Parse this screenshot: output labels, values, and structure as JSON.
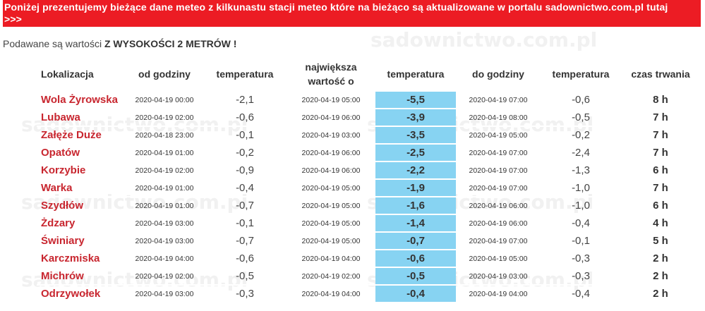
{
  "banner": {
    "line1": "Poniżej prezentujemy bieżące dane meteo z kilkunastu stacji meteo które na bieżąco są aktualizowane w portalu sadownictwo.com.pl tutaj",
    "line2": ">>>"
  },
  "note": {
    "prefix": "Podawane są wartości ",
    "bold": "Z WYSOKOŚCI 2 METRÓW !"
  },
  "watermark": "sadownictwo.com.pl",
  "colors": {
    "banner_bg": "#ec1c24",
    "location_text": "#c8262f",
    "min_temp_bg": "#87d3f2"
  },
  "table": {
    "headers": {
      "location": "Lokalizacja",
      "from_time": "od godziny",
      "temp1": "temperatura",
      "max_value_line1": "największa",
      "max_value_line2": "wartość o",
      "temp_min": "temperatura",
      "to_time": "do godziny",
      "temp2": "temperatura",
      "duration": "czas trwania"
    },
    "rows": [
      {
        "location": "Wola Żyrowska",
        "from": "2020-04-19 00:00",
        "t1": "-2,1",
        "at": "2020-04-19 05:00",
        "tmin": "-5,5",
        "to": "2020-04-19 07:00",
        "t2": "-0,6",
        "dur": "8 h"
      },
      {
        "location": "Lubawa",
        "from": "2020-04-19 02:00",
        "t1": "-0,6",
        "at": "2020-04-19 06:00",
        "tmin": "-3,9",
        "to": "2020-04-19 08:00",
        "t2": "-0,5",
        "dur": "7 h"
      },
      {
        "location": "Załęże Duże",
        "from": "2020-04-18 23:00",
        "t1": "-0,1",
        "at": "2020-04-19 03:00",
        "tmin": "-3,5",
        "to": "2020-04-19 05:00",
        "t2": "-0,2",
        "dur": "7 h"
      },
      {
        "location": "Opatów",
        "from": "2020-04-19 01:00",
        "t1": "-0,2",
        "at": "2020-04-19 06:00",
        "tmin": "-2,5",
        "to": "2020-04-19 07:00",
        "t2": "-2,4",
        "dur": "7 h"
      },
      {
        "location": "Korzybie",
        "from": "2020-04-19 02:00",
        "t1": "-0,9",
        "at": "2020-04-19 06:00",
        "tmin": "-2,2",
        "to": "2020-04-19 07:00",
        "t2": "-1,3",
        "dur": "6 h"
      },
      {
        "location": "Warka",
        "from": "2020-04-19 01:00",
        "t1": "-0,4",
        "at": "2020-04-19 05:00",
        "tmin": "-1,9",
        "to": "2020-04-19 07:00",
        "t2": "-1,0",
        "dur": "7 h"
      },
      {
        "location": "Szydłów",
        "from": "2020-04-19 01:00",
        "t1": "-0,7",
        "at": "2020-04-19 05:00",
        "tmin": "-1,6",
        "to": "2020-04-19 06:00",
        "t2": "-1,0",
        "dur": "6 h"
      },
      {
        "location": "Żdzary",
        "from": "2020-04-19 03:00",
        "t1": "-0,1",
        "at": "2020-04-19 05:00",
        "tmin": "-1,4",
        "to": "2020-04-19 06:00",
        "t2": "-0,4",
        "dur": "4 h"
      },
      {
        "location": "Świniary",
        "from": "2020-04-19 03:00",
        "t1": "-0,7",
        "at": "2020-04-19 05:00",
        "tmin": "-0,7",
        "to": "2020-04-19 07:00",
        "t2": "-0,1",
        "dur": "5 h"
      },
      {
        "location": "Karczmiska",
        "from": "2020-04-19 04:00",
        "t1": "-0,6",
        "at": "2020-04-19 04:00",
        "tmin": "-0,6",
        "to": "2020-04-19 05:00",
        "t2": "-0,3",
        "dur": "2 h"
      },
      {
        "location": "Michrów",
        "from": "2020-04-19 02:00",
        "t1": "-0,5",
        "at": "2020-04-19 02:00",
        "tmin": "-0,5",
        "to": "2020-04-19 03:00",
        "t2": "-0,3",
        "dur": "2 h"
      },
      {
        "location": "Odrzywołek",
        "from": "2020-04-19 03:00",
        "t1": "-0,3",
        "at": "2020-04-19 04:00",
        "tmin": "-0,4",
        "to": "2020-04-19 04:00",
        "t2": "-0,4",
        "dur": "2 h"
      }
    ]
  }
}
